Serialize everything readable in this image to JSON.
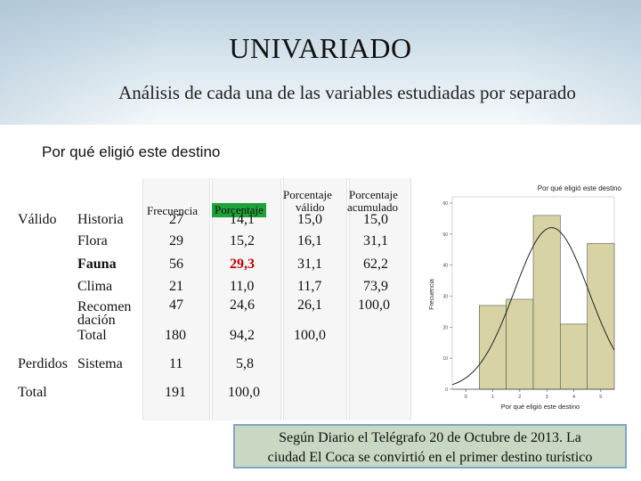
{
  "slide": {
    "title": "UNIVARIADO",
    "subtitle": "Análisis de cada una de las variables estudiadas por separado",
    "topic": "Por qué eligió este destino"
  },
  "table": {
    "headers": {
      "frecuencia": "Frecuencia",
      "porcentaje": "Porcentaje",
      "porcentaje_valido_1": "Porcentaje",
      "porcentaje_valido_2": "válido",
      "porcentaje_acumulado_1": "Porcentaje",
      "porcentaje_acumulado_2": "acumulado"
    },
    "valido_label": "Válido",
    "rows": [
      {
        "label": "Historia",
        "frecuencia": "27",
        "porcentaje": "14,1",
        "valido": "15,0",
        "acumulado": "15,0"
      },
      {
        "label": "Flora",
        "frecuencia": "29",
        "porcentaje": "15,2",
        "valido": "16,1",
        "acumulado": "31,1"
      },
      {
        "label": "Fauna",
        "frecuencia": "56",
        "porcentaje": "29,3",
        "valido": "31,1",
        "acumulado": "62,2"
      },
      {
        "label": "Clima",
        "frecuencia": "21",
        "porcentaje": "11,0",
        "valido": "11,7",
        "acumulado": "73,9"
      },
      {
        "label_1": "Recomen",
        "label_2": "dación",
        "frecuencia": "47",
        "porcentaje": "24,6",
        "valido": "26,1",
        "acumulado": "100,0"
      }
    ],
    "total_valido": {
      "label": "Total",
      "frecuencia": "180",
      "porcentaje": "94,2",
      "valido": "100,0"
    },
    "perdidos": {
      "label": "Perdidos",
      "sublabel": "Sistema",
      "frecuencia": "11",
      "porcentaje": "5,8"
    },
    "total": {
      "label": "Total",
      "frecuencia": "191",
      "porcentaje": "100,0"
    }
  },
  "chart_data": {
    "type": "bar",
    "title": "Por qué eligió este destino",
    "xlabel": "Por qué eligió este destino",
    "ylabel": "Frecuencia",
    "categories": [
      "1",
      "2",
      "3",
      "4",
      "5"
    ],
    "values": [
      27,
      29,
      56,
      21,
      47
    ],
    "x_ticks": [
      "0",
      "1",
      "2",
      "3",
      "4",
      "5"
    ],
    "y_ticks": [
      "0",
      "10",
      "20",
      "30",
      "40",
      "50",
      "60"
    ],
    "ylim": [
      0,
      62
    ],
    "normal_curve": true,
    "colors": {
      "bar": "#d8d3a4",
      "bar_edge": "#555555",
      "curve": "#222222"
    }
  },
  "note": {
    "line1": "Según Diario el Telégrafo 20 de Octubre de 2013. La",
    "line2": "ciudad El Coca se convirtió en el primer destino turístico"
  }
}
